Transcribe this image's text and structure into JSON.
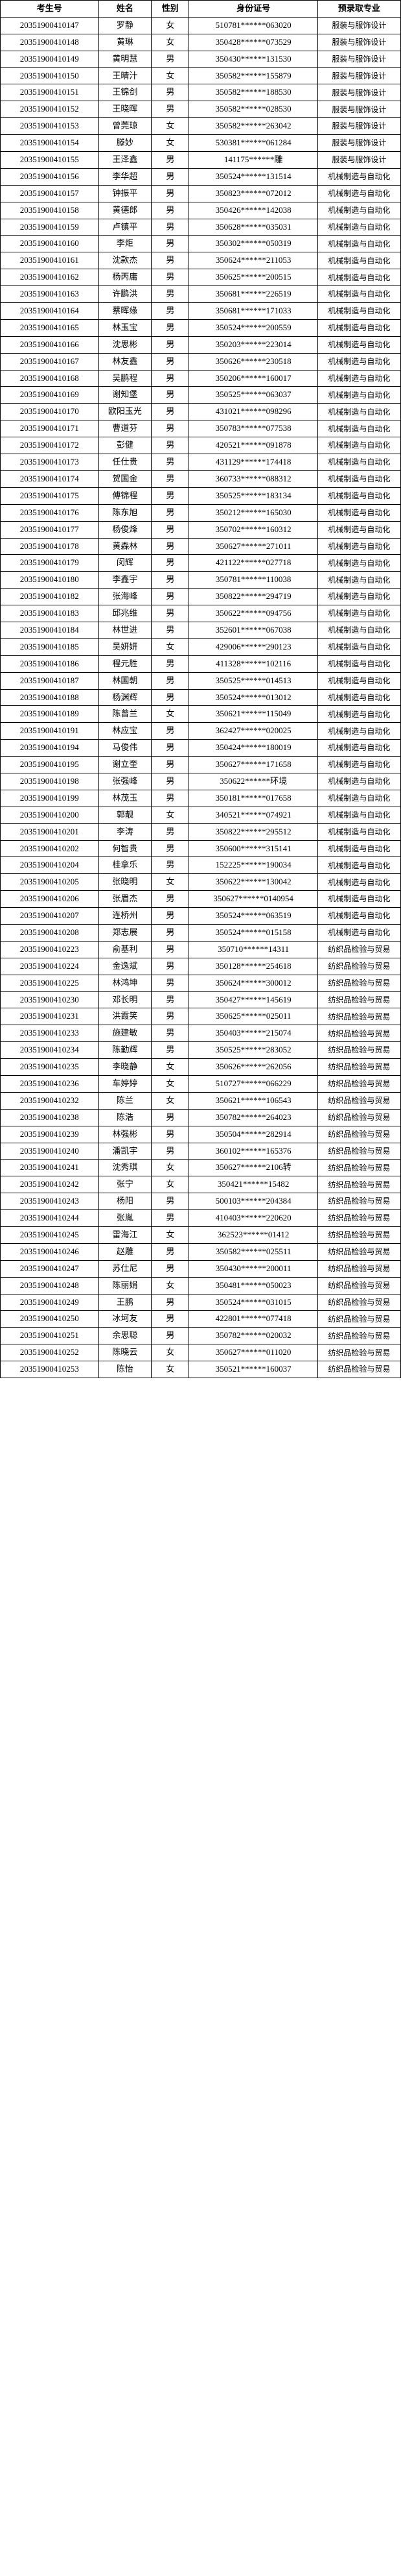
{
  "headers": {
    "exam_id": "考生号",
    "name": "姓名",
    "gender": "性别",
    "idcard": "身份证号",
    "major": "预录取专业"
  },
  "majors": {
    "fashion": "服装与服饰设计",
    "mech": "机械制造与自动化",
    "textile": "纺织品检验与贸易"
  },
  "rows": [
    {
      "exam_id": "20351900410147",
      "name": "罗静",
      "gender": "女",
      "idcard": "510781******063020",
      "major": "服装与服饰设计"
    },
    {
      "exam_id": "20351900410148",
      "name": "黄琳",
      "gender": "女",
      "idcard": "350428******073529",
      "major": "服装与服饰设计"
    },
    {
      "exam_id": "20351900410149",
      "name": "黄明慧",
      "gender": "男",
      "idcard": "350430******131530",
      "major": "服装与服饰设计"
    },
    {
      "exam_id": "20351900410150",
      "name": "王晴汁",
      "gender": "女",
      "idcard": "350582******155879",
      "major": "服装与服饰设计"
    },
    {
      "exam_id": "20351900410151",
      "name": "王锦剑",
      "gender": "男",
      "idcard": "350582******188530",
      "major": "服装与服饰设计"
    },
    {
      "exam_id": "20351900410152",
      "name": "王晓晖",
      "gender": "男",
      "idcard": "350582******028530",
      "major": "服装与服饰设计"
    },
    {
      "exam_id": "20351900410153",
      "name": "曾莞琼",
      "gender": "女",
      "idcard": "350582******263042",
      "major": "服装与服饰设计"
    },
    {
      "exam_id": "20351900410154",
      "name": "滕妙",
      "gender": "女",
      "idcard": "530381******061284",
      "major": "服装与服饰设计"
    },
    {
      "exam_id": "20351900410155",
      "name": "王泽鑫",
      "gender": "男",
      "idcard": "141175******雕",
      "major": "服装与服饰设计"
    },
    {
      "exam_id": "20351900410156",
      "name": "李华超",
      "gender": "男",
      "idcard": "350524******131514",
      "major": "机械制造与自动化"
    },
    {
      "exam_id": "20351900410157",
      "name": "钟振平",
      "gender": "男",
      "idcard": "350823******072012",
      "major": "机械制造与自动化"
    },
    {
      "exam_id": "20351900410158",
      "name": "黄德郎",
      "gender": "男",
      "idcard": "350426******142038",
      "major": "机械制造与自动化"
    },
    {
      "exam_id": "20351900410159",
      "name": "卢镇平",
      "gender": "男",
      "idcard": "350628******035031",
      "major": "机械制造与自动化"
    },
    {
      "exam_id": "20351900410160",
      "name": "李炬",
      "gender": "男",
      "idcard": "350302******050319",
      "major": "机械制造与自动化"
    },
    {
      "exam_id": "20351900410161",
      "name": "沈款杰",
      "gender": "男",
      "idcard": "350624******211053",
      "major": "机械制造与自动化"
    },
    {
      "exam_id": "20351900410162",
      "name": "杨丙庸",
      "gender": "男",
      "idcard": "350625******200515",
      "major": "机械制造与自动化"
    },
    {
      "exam_id": "20351900410163",
      "name": "许鹏洪",
      "gender": "男",
      "idcard": "350681******226519",
      "major": "机械制造与自动化"
    },
    {
      "exam_id": "20351900410164",
      "name": "蔡晖缘",
      "gender": "男",
      "idcard": "350681******171033",
      "major": "机械制造与自动化"
    },
    {
      "exam_id": "20351900410165",
      "name": "林玉宝",
      "gender": "男",
      "idcard": "350524******200559",
      "major": "机械制造与自动化"
    },
    {
      "exam_id": "20351900410166",
      "name": "沈思彬",
      "gender": "男",
      "idcard": "350203******223014",
      "major": "机械制造与自动化"
    },
    {
      "exam_id": "20351900410167",
      "name": "林友鑫",
      "gender": "男",
      "idcard": "350626******230518",
      "major": "机械制造与自动化"
    },
    {
      "exam_id": "20351900410168",
      "name": "吴鹏程",
      "gender": "男",
      "idcard": "350206******160017",
      "major": "机械制造与自动化"
    },
    {
      "exam_id": "20351900410169",
      "name": "谢知堡",
      "gender": "男",
      "idcard": "350525******063037",
      "major": "机械制造与自动化"
    },
    {
      "exam_id": "20351900410170",
      "name": "欧阳玉光",
      "gender": "男",
      "idcard": "431021******098296",
      "major": "机械制造与自动化"
    },
    {
      "exam_id": "20351900410171",
      "name": "曹道芬",
      "gender": "男",
      "idcard": "350783******077538",
      "major": "机械制造与自动化"
    },
    {
      "exam_id": "20351900410172",
      "name": "彭健",
      "gender": "男",
      "idcard": "420521******091878",
      "major": "机械制造与自动化"
    },
    {
      "exam_id": "20351900410173",
      "name": "任仕贵",
      "gender": "男",
      "idcard": "431129******174418",
      "major": "机械制造与自动化"
    },
    {
      "exam_id": "20351900410174",
      "name": "贺国金",
      "gender": "男",
      "idcard": "360733******088312",
      "major": "机械制造与自动化"
    },
    {
      "exam_id": "20351900410175",
      "name": "傅锦程",
      "gender": "男",
      "idcard": "350525******183134",
      "major": "机械制造与自动化"
    },
    {
      "exam_id": "20351900410176",
      "name": "陈东旭",
      "gender": "男",
      "idcard": "350212******165030",
      "major": "机械制造与自动化"
    },
    {
      "exam_id": "20351900410177",
      "name": "杨俊烽",
      "gender": "男",
      "idcard": "350702******160312",
      "major": "机械制造与自动化"
    },
    {
      "exam_id": "20351900410178",
      "name": "黄森林",
      "gender": "男",
      "idcard": "350627******271011",
      "major": "机械制造与自动化"
    },
    {
      "exam_id": "20351900410179",
      "name": "闵辉",
      "gender": "男",
      "idcard": "421122******027718",
      "major": "机械制造与自动化"
    },
    {
      "exam_id": "20351900410180",
      "name": "李鑫宇",
      "gender": "男",
      "idcard": "350781******110038",
      "major": "机械制造与自动化"
    },
    {
      "exam_id": "20351900410182",
      "name": "张海峰",
      "gender": "男",
      "idcard": "350822******294719",
      "major": "机械制造与自动化"
    },
    {
      "exam_id": "20351900410183",
      "name": "邱兆维",
      "gender": "男",
      "idcard": "350622******094756",
      "major": "机械制造与自动化"
    },
    {
      "exam_id": "20351900410184",
      "name": "林世进",
      "gender": "男",
      "idcard": "352601******067038",
      "major": "机械制造与自动化"
    },
    {
      "exam_id": "20351900410185",
      "name": "吴妍妍",
      "gender": "女",
      "idcard": "429006******290123",
      "major": "机械制造与自动化"
    },
    {
      "exam_id": "20351900410186",
      "name": "程元胜",
      "gender": "男",
      "idcard": "411328******102116",
      "major": "机械制造与自动化"
    },
    {
      "exam_id": "20351900410187",
      "name": "林国朝",
      "gender": "男",
      "idcard": "350525******014513",
      "major": "机械制造与自动化"
    },
    {
      "exam_id": "20351900410188",
      "name": "杨渊辉",
      "gender": "男",
      "idcard": "350524******013012",
      "major": "机械制造与自动化"
    },
    {
      "exam_id": "20351900410189",
      "name": "陈曾兰",
      "gender": "女",
      "idcard": "350621******115049",
      "major": "机械制造与自动化"
    },
    {
      "exam_id": "20351900410191",
      "name": "林应宝",
      "gender": "男",
      "idcard": "362427******020025",
      "major": "机械制造与自动化"
    },
    {
      "exam_id": "20351900410194",
      "name": "马俊伟",
      "gender": "男",
      "idcard": "350424******180019",
      "major": "机械制造与自动化"
    },
    {
      "exam_id": "20351900410195",
      "name": "谢立奎",
      "gender": "男",
      "idcard": "350627******171658",
      "major": "机械制造与自动化"
    },
    {
      "exam_id": "20351900410198",
      "name": "张强峰",
      "gender": "男",
      "idcard": "350622******环境",
      "major": "机械制造与自动化"
    },
    {
      "exam_id": "20351900410199",
      "name": "林茂玉",
      "gender": "男",
      "idcard": "350181******017658",
      "major": "机械制造与自动化"
    },
    {
      "exam_id": "20351900410200",
      "name": "郭靓",
      "gender": "女",
      "idcard": "340521******074921",
      "major": "机械制造与自动化"
    },
    {
      "exam_id": "20351900410201",
      "name": "李涛",
      "gender": "男",
      "idcard": "350822******295512",
      "major": "机械制造与自动化"
    },
    {
      "exam_id": "20351900410202",
      "name": "何智贵",
      "gender": "男",
      "idcard": "350600******315141",
      "major": "机械制造与自动化"
    },
    {
      "exam_id": "20351900410204",
      "name": "桂拿乐",
      "gender": "男",
      "idcard": "152225******190034",
      "major": "机械制造与自动化"
    },
    {
      "exam_id": "20351900410205",
      "name": "张晓明",
      "gender": "女",
      "idcard": "350622******130042",
      "major": "机械制造与自动化"
    },
    {
      "exam_id": "20351900410206",
      "name": "张眉杰",
      "gender": "男",
      "idcard": "350627******0140954",
      "major": "机械制造与自动化"
    },
    {
      "exam_id": "20351900410207",
      "name": "连桥州",
      "gender": "男",
      "idcard": "350524******063519",
      "major": "机械制造与自动化"
    },
    {
      "exam_id": "20351900410208",
      "name": "郑志展",
      "gender": "男",
      "idcard": "350524******015158",
      "major": "机械制造与自动化"
    },
    {
      "exam_id": "20351900410223",
      "name": "俞基利",
      "gender": "男",
      "idcard": "350710******14311",
      "major": "纺织品检验与贸易"
    },
    {
      "exam_id": "20351900410224",
      "name": "金逸斌",
      "gender": "男",
      "idcard": "350128******254618",
      "major": "纺织品检验与贸易"
    },
    {
      "exam_id": "20351900410225",
      "name": "林鸿坤",
      "gender": "男",
      "idcard": "350624******300012",
      "major": "纺织品检验与贸易"
    },
    {
      "exam_id": "20351900410230",
      "name": "邓长明",
      "gender": "男",
      "idcard": "350427******145619",
      "major": "纺织品检验与贸易"
    },
    {
      "exam_id": "20351900410231",
      "name": "洪霞笑",
      "gender": "男",
      "idcard": "350625******025011",
      "major": "纺织品检验与贸易"
    },
    {
      "exam_id": "20351900410233",
      "name": "施建敏",
      "gender": "男",
      "idcard": "350403******215074",
      "major": "纺织品检验与贸易"
    },
    {
      "exam_id": "20351900410234",
      "name": "陈勤辉",
      "gender": "男",
      "idcard": "350525******283052",
      "major": "纺织品检验与贸易"
    },
    {
      "exam_id": "20351900410235",
      "name": "李晓静",
      "gender": "女",
      "idcard": "350626******262056",
      "major": "纺织品检验与贸易"
    },
    {
      "exam_id": "20351900410236",
      "name": "车婷婷",
      "gender": "女",
      "idcard": "510727******066229",
      "major": "纺织品检验与贸易"
    },
    {
      "exam_id": "20351900410232",
      "name": "陈兰",
      "gender": "女",
      "idcard": "350621******106543",
      "major": "纺织品检验与贸易"
    },
    {
      "exam_id": "20351900410238",
      "name": "陈浩",
      "gender": "男",
      "idcard": "350782******264023",
      "major": "纺织品检验与贸易"
    },
    {
      "exam_id": "20351900410239",
      "name": "林强彬",
      "gender": "男",
      "idcard": "350504******282914",
      "major": "纺织品检验与贸易"
    },
    {
      "exam_id": "20351900410240",
      "name": "潘凯宇",
      "gender": "男",
      "idcard": "360102******165376",
      "major": "纺织品检验与贸易"
    },
    {
      "exam_id": "20351900410241",
      "name": "沈秀琪",
      "gender": "女",
      "idcard": "350627******2106转",
      "major": "纺织品检验与贸易"
    },
    {
      "exam_id": "20351900410242",
      "name": "张宁",
      "gender": "女",
      "idcard": "350421******15482",
      "major": "纺织品检验与贸易"
    },
    {
      "exam_id": "20351900410243",
      "name": "杨阳",
      "gender": "男",
      "idcard": "500103******204384",
      "major": "纺织品检验与贸易"
    },
    {
      "exam_id": "20351900410244",
      "name": "张胤",
      "gender": "男",
      "idcard": "410403******220620",
      "major": "纺织品检验与贸易"
    },
    {
      "exam_id": "20351900410245",
      "name": "雷海江",
      "gender": "女",
      "idcard": "362523******01412",
      "major": "纺织品检验与贸易"
    },
    {
      "exam_id": "20351900410246",
      "name": "赵雕",
      "gender": "男",
      "idcard": "350582******025511",
      "major": "纺织品检验与贸易"
    },
    {
      "exam_id": "20351900410247",
      "name": "苏仕尼",
      "gender": "男",
      "idcard": "350430******200011",
      "major": "纺织品检验与贸易"
    },
    {
      "exam_id": "20351900410248",
      "name": "陈丽娟",
      "gender": "女",
      "idcard": "350481******050023",
      "major": "纺织品检验与贸易"
    },
    {
      "exam_id": "20351900410249",
      "name": "王鹏",
      "gender": "男",
      "idcard": "350524******031015",
      "major": "纺织品检验与贸易"
    },
    {
      "exam_id": "20351900410250",
      "name": "冰坷友",
      "gender": "男",
      "idcard": "422801******077418",
      "major": "纺织品检验与贸易"
    },
    {
      "exam_id": "20351900410251",
      "name": "余思聪",
      "gender": "男",
      "idcard": "350782******020032",
      "major": "纺织品检验与贸易"
    },
    {
      "exam_id": "20351900410252",
      "name": "陈晓云",
      "gender": "女",
      "idcard": "350627******011020",
      "major": "纺织品检验与贸易"
    },
    {
      "exam_id": "20351900410253",
      "name": "陈怡",
      "gender": "女",
      "idcard": "350521******160037",
      "major": "纺织品检验与贸易"
    }
  ],
  "style": {
    "border_color": "#000000",
    "background_color": "#ffffff",
    "font_family": "SimSun",
    "header_fontsize": 13,
    "cell_fontsize": 13,
    "major_fontsize": 12,
    "col_widths": {
      "exam_id": 130,
      "name": 70,
      "gender": 50,
      "idcard": 170,
      "major": 110
    }
  }
}
